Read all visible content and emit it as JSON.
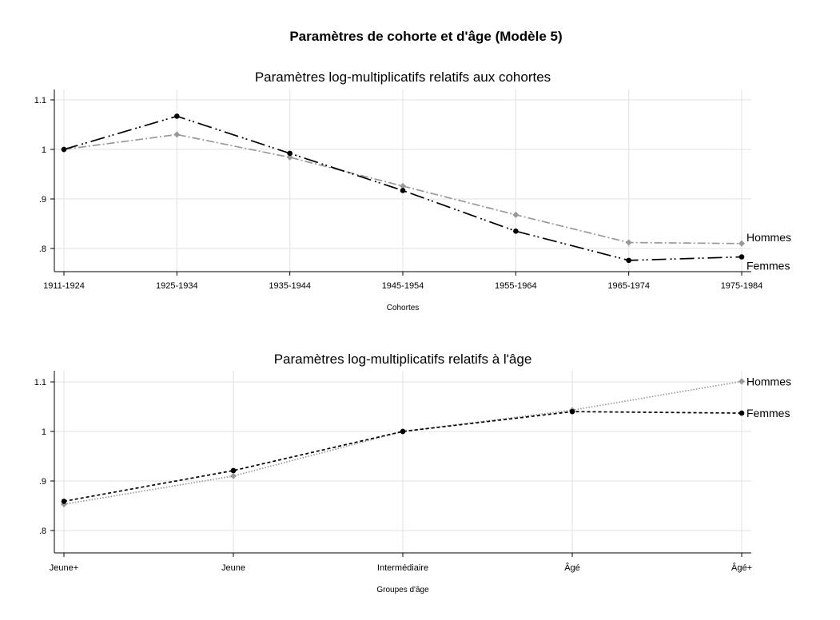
{
  "figure": {
    "title": "Paramètres de cohorte et d'âge (Modèle 5)"
  },
  "chart_data": [
    {
      "type": "line",
      "title": "Paramètres log-multiplicatifs relatifs aux cohortes",
      "xlabel": "Cohortes",
      "ylabel": "",
      "categories": [
        "1911-1924",
        "1925-1934",
        "1935-1944",
        "1945-1954",
        "1955-1964",
        "1965-1974",
        "1975-1984"
      ],
      "ylim": [
        0.76,
        1.115
      ],
      "yticks": [
        0.8,
        0.9,
        1,
        1.1
      ],
      "ytick_labels": [
        ".8",
        ".9",
        "1",
        "1.1"
      ],
      "grid": true,
      "series": [
        {
          "name": "Hommes",
          "values": [
            1.0,
            1.03,
            0.984,
            0.926,
            0.868,
            0.812,
            0.81
          ],
          "color": "#999999",
          "dash": "10,3,2,3",
          "marker": "diamond"
        },
        {
          "name": "Femmes",
          "values": [
            1.0,
            1.067,
            0.992,
            0.917,
            0.835,
            0.776,
            0.783
          ],
          "color": "#000000",
          "dash": "18,5,2,3,2,5",
          "marker": "circle"
        }
      ]
    },
    {
      "type": "line",
      "title": "Paramètres log-multiplicatifs relatifs à l'âge",
      "xlabel": "Groupes d'âge",
      "ylabel": "",
      "categories": [
        "Jeune+",
        "Jeune",
        "Intermédiaire",
        "Âgé",
        "Âgé+"
      ],
      "ylim": [
        0.77,
        1.12
      ],
      "yticks": [
        0.8,
        0.9,
        1,
        1.1
      ],
      "ytick_labels": [
        ".8",
        ".9",
        "1",
        "1.1"
      ],
      "grid": true,
      "series": [
        {
          "name": "Hommes",
          "values": [
            0.853,
            0.91,
            1.0,
            1.043,
            1.101
          ],
          "color": "#999999",
          "dash": "1.5,2",
          "marker": "diamond"
        },
        {
          "name": "Femmes",
          "values": [
            0.859,
            0.921,
            1.0,
            1.04,
            1.037
          ],
          "color": "#000000",
          "dash": "4,3",
          "marker": "circle"
        }
      ]
    }
  ]
}
